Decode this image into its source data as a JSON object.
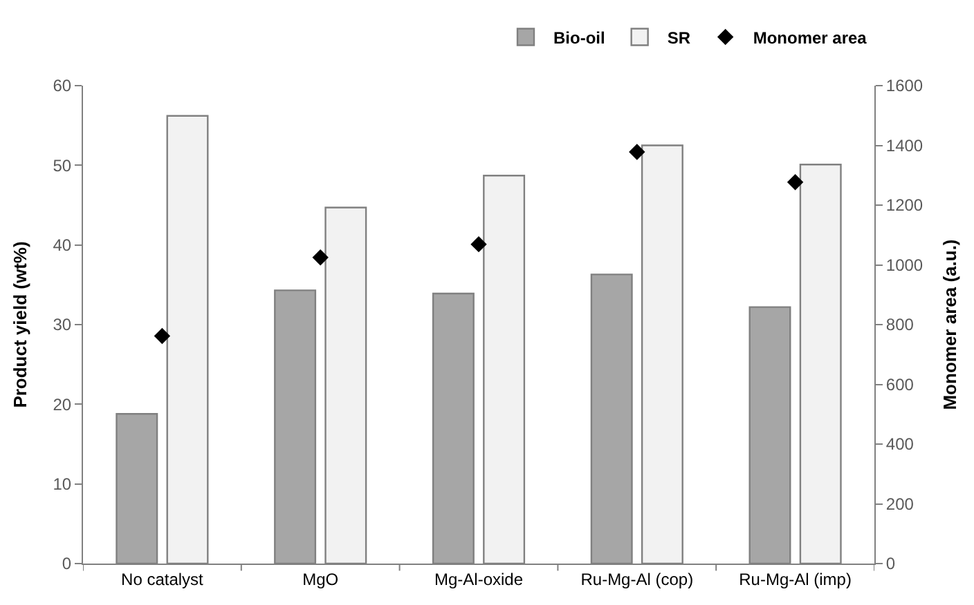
{
  "chart_data": {
    "type": "bar",
    "categories": [
      "No catalyst",
      "MgO",
      "Mg-Al-oxide",
      "Ru-Mg-Al (cop)",
      "Ru-Mg-Al (imp)"
    ],
    "series": [
      {
        "name": "Bio-oil",
        "color": "#a6a6a6",
        "values": [
          18.8,
          34.3,
          33.9,
          36.3,
          32.2
        ]
      },
      {
        "name": "SR",
        "color": "#f2f2f2",
        "values": [
          56.2,
          44.7,
          48.7,
          52.5,
          50.1
        ]
      },
      {
        "name": "Monomer area",
        "color": "#000000",
        "type": "scatter",
        "axis": "y2",
        "marker": "diamond",
        "values": [
          762,
          1025,
          1069,
          1378,
          1277
        ]
      }
    ],
    "ylabel": "Product yield (wt%)",
    "y2label": "Monomer area (a.u.)",
    "ylim": [
      0,
      60
    ],
    "yticks": [
      0,
      10,
      20,
      30,
      40,
      50,
      60
    ],
    "y2lim": [
      0,
      1600
    ],
    "y2ticks": [
      0,
      200,
      400,
      600,
      800,
      1000,
      1200,
      1400,
      1600
    ],
    "legend": "top right"
  }
}
